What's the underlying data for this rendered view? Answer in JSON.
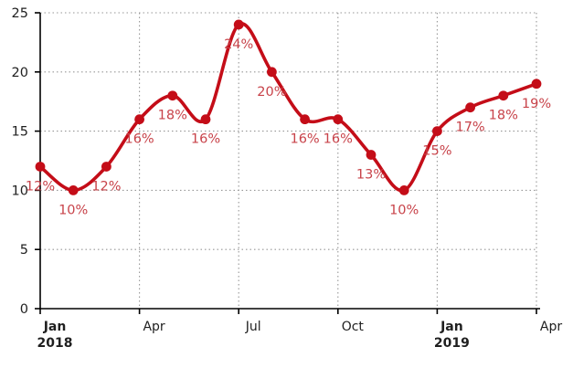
{
  "chart_data": {
    "type": "line",
    "title": "",
    "x": [
      "Jan 2018",
      "Feb 2018",
      "Mar 2018",
      "Apr 2018",
      "May 2018",
      "Jun 2018",
      "Jul 2018",
      "Aug 2018",
      "Sep 2018",
      "Oct 2018",
      "Nov 2018",
      "Dec 2018",
      "Jan 2019",
      "Feb 2019",
      "Mar 2019",
      "Apr 2019"
    ],
    "values": [
      12,
      10,
      12,
      16,
      18,
      16,
      24,
      20,
      16,
      16,
      13,
      10,
      15,
      17,
      18,
      19
    ],
    "point_labels": [
      "12%",
      "10%",
      "12%",
      "16%",
      "18%",
      "16%",
      "24%",
      "20%",
      "16%",
      "16%",
      "13%",
      "10%",
      "15%",
      "17%",
      "18%",
      "19%"
    ],
    "ylim": [
      0,
      25
    ],
    "yticks": [
      0,
      5,
      10,
      15,
      20,
      25
    ],
    "x_axis_ticks": [
      {
        "month_index": 0,
        "line1": "Jan",
        "line2": "2018",
        "bold": true
      },
      {
        "month_index": 3,
        "line1": "Apr",
        "line2": "",
        "bold": false
      },
      {
        "month_index": 6,
        "line1": "Jul",
        "line2": "",
        "bold": false
      },
      {
        "month_index": 9,
        "line1": "Oct",
        "line2": "",
        "bold": false
      },
      {
        "month_index": 12,
        "line1": "Jan",
        "line2": "2019",
        "bold": true
      },
      {
        "month_index": 15,
        "line1": "Apr",
        "line2": "",
        "bold": false
      }
    ],
    "grid": true,
    "grid_style": "dotted",
    "legend": false,
    "line_smooth": true,
    "xlabel": "",
    "ylabel": "",
    "colors": {
      "line": "#c40d18",
      "point": "#c40d18",
      "point_label": "#c8434a",
      "axis": "#000000",
      "axis_text": "#1f1f1f",
      "grid": "#979797",
      "background": "#ffffff"
    }
  }
}
